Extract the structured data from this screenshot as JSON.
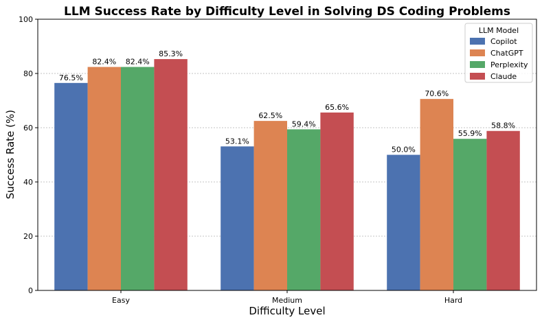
{
  "chart_data": {
    "type": "bar",
    "title": "LLM Success Rate by Difficulty Level in Solving DS Coding Problems",
    "xlabel": "Difficulty Level",
    "ylabel": "Success Rate (%)",
    "ylim": [
      0,
      100
    ],
    "yticks": [
      0,
      20,
      40,
      60,
      80,
      100
    ],
    "grid": "y-dashed",
    "categories": [
      "Easy",
      "Medium",
      "Hard"
    ],
    "series": [
      {
        "name": "Copilot",
        "color": "#4c72b0",
        "values": [
          76.5,
          53.1,
          50.0
        ],
        "labels": [
          "76.5%",
          "53.1%",
          "50.0%"
        ]
      },
      {
        "name": "ChatGPT",
        "color": "#dd8452",
        "values": [
          82.4,
          62.5,
          70.6
        ],
        "labels": [
          "82.4%",
          "62.5%",
          "70.6%"
        ]
      },
      {
        "name": "Perplexity",
        "color": "#55a868",
        "values": [
          82.4,
          59.4,
          55.9
        ],
        "labels": [
          "82.4%",
          "59.4%",
          "55.9%"
        ]
      },
      {
        "name": "Claude",
        "color": "#c44e52",
        "values": [
          85.3,
          65.6,
          58.8
        ],
        "labels": [
          "85.3%",
          "65.6%",
          "58.8%"
        ]
      }
    ],
    "legend": {
      "title": "LLM Model",
      "placement": "top-right"
    }
  }
}
